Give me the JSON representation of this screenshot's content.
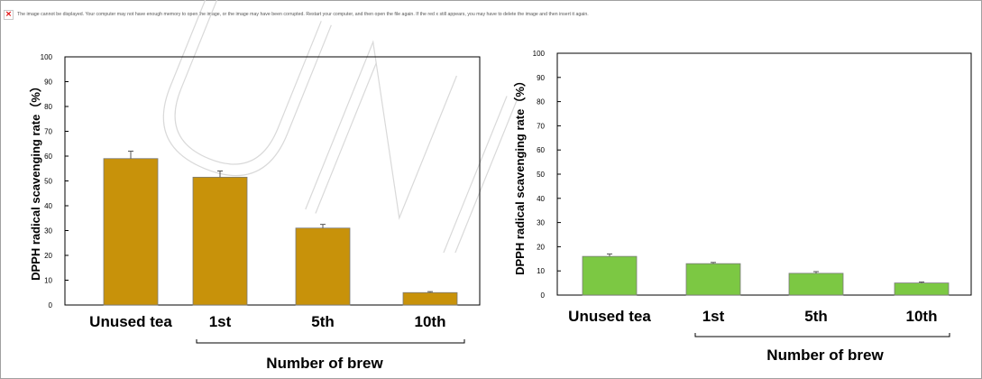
{
  "banner": {
    "icon": "broken-image-icon",
    "message": "The image cannot be displayed. Your computer may not have enough memory to open the image, or the image may have been corrupted. Restart your computer, and then open the file again. If the red x still appears, you may have to delete the image and then insert it again."
  },
  "colors": {
    "left_bar": "#c8920a",
    "right_bar": "#7cc843",
    "watermark": "#e2e2e2"
  },
  "chart_data": [
    {
      "type": "bar",
      "categories": [
        "Unused tea",
        "1st",
        "5th",
        "10th"
      ],
      "values": [
        59,
        51.5,
        31,
        5
      ],
      "errors": [
        3,
        2.5,
        1.5,
        0.4
      ],
      "ylabel": "DPPH radical scavenging rate（%）",
      "xlabel": "Number of brew",
      "ylim": [
        0,
        100
      ],
      "yticks": [
        0,
        10,
        20,
        30,
        40,
        50,
        60,
        70,
        80,
        90,
        100
      ],
      "grid": false
    },
    {
      "type": "bar",
      "categories": [
        "Unused tea",
        "1st",
        "5th",
        "10th"
      ],
      "values": [
        16,
        13,
        9,
        5
      ],
      "errors": [
        1,
        0.5,
        0.7,
        0.4
      ],
      "ylabel": "DPPH radical scavenging rate（%）",
      "xlabel": "Number of brew",
      "ylim": [
        0,
        100
      ],
      "yticks": [
        0,
        10,
        20,
        30,
        40,
        50,
        60,
        70,
        80,
        90,
        100
      ],
      "grid": false
    }
  ]
}
